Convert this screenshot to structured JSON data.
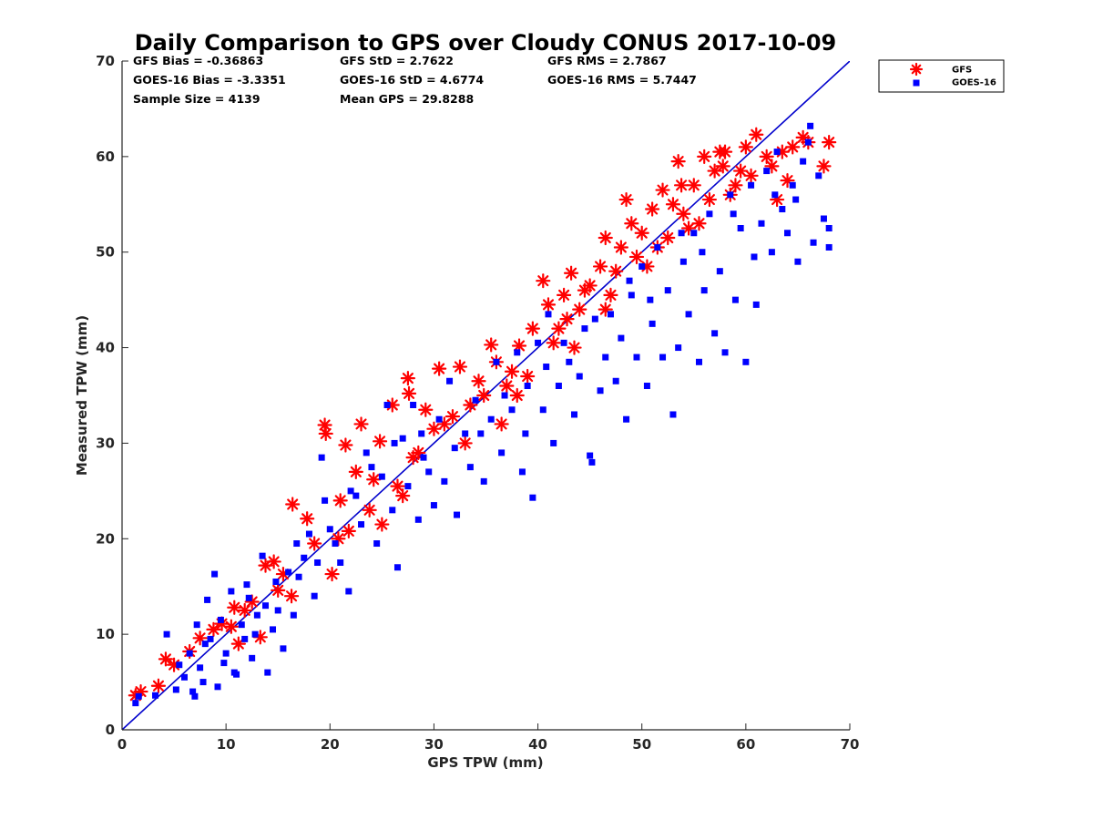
{
  "chart_data": {
    "type": "scatter",
    "title": "Daily Comparison to GPS over Cloudy CONUS 2017-10-09",
    "xlabel": "GPS TPW (mm)",
    "ylabel": "Measured TPW (mm)",
    "xlim": [
      0,
      70
    ],
    "ylim": [
      0,
      70
    ],
    "xticks": [
      "0",
      "10",
      "20",
      "30",
      "40",
      "50",
      "60",
      "70"
    ],
    "yticks": [
      "0",
      "10",
      "20",
      "30",
      "40",
      "50",
      "60",
      "70"
    ],
    "grid": false,
    "legend_position": "outside-top-right",
    "stats": [
      [
        "GFS Bias = -0.36863",
        "GFS StD = 2.7622",
        "GFS RMS = 2.7867"
      ],
      [
        "GOES-16 Bias = -3.3351",
        "GOES-16 StD = 4.6774",
        "GOES-16 RMS = 5.7447"
      ],
      [
        "Sample Size = 4139",
        "Mean GPS = 29.8288",
        ""
      ]
    ],
    "reference_line": {
      "x": [
        0,
        70
      ],
      "y": [
        0,
        70
      ],
      "color": "#0000cc"
    },
    "series": [
      {
        "name": "GFS",
        "marker": "asterisk",
        "color": "#ff0000",
        "points": [
          [
            1.3,
            3.6
          ],
          [
            1.8,
            4.0
          ],
          [
            3.5,
            4.6
          ],
          [
            4.2,
            7.4
          ],
          [
            5.0,
            6.8
          ],
          [
            6.5,
            8.2
          ],
          [
            7.5,
            9.6
          ],
          [
            8.8,
            10.5
          ],
          [
            9.6,
            11.1
          ],
          [
            10.5,
            10.8
          ],
          [
            11.8,
            12.5
          ],
          [
            12.5,
            13.4
          ],
          [
            13.8,
            17.2
          ],
          [
            14.6,
            17.6
          ],
          [
            15.5,
            16.3
          ],
          [
            16.4,
            23.6
          ],
          [
            17.8,
            22.1
          ],
          [
            19.5,
            31.9
          ],
          [
            19.6,
            31.0
          ],
          [
            20.2,
            16.3
          ],
          [
            21.0,
            24.0
          ],
          [
            21.5,
            29.8
          ],
          [
            22.5,
            27.0
          ],
          [
            23.0,
            32.0
          ],
          [
            24.2,
            26.2
          ],
          [
            25.0,
            21.5
          ],
          [
            26.0,
            34.0
          ],
          [
            27.5,
            36.8
          ],
          [
            27.6,
            35.2
          ],
          [
            28.5,
            29.0
          ],
          [
            29.2,
            33.5
          ],
          [
            30.5,
            37.8
          ],
          [
            31.0,
            32.0
          ],
          [
            32.5,
            38.0
          ],
          [
            33.5,
            34.0
          ],
          [
            34.3,
            36.5
          ],
          [
            35.5,
            40.3
          ],
          [
            36.0,
            38.5
          ],
          [
            37.0,
            36.0
          ],
          [
            38.2,
            40.2
          ],
          [
            39.0,
            37.0
          ],
          [
            39.5,
            42.0
          ],
          [
            40.5,
            47.0
          ],
          [
            41.0,
            44.5
          ],
          [
            42.0,
            42.0
          ],
          [
            42.5,
            45.5
          ],
          [
            43.2,
            47.8
          ],
          [
            44.0,
            44.0
          ],
          [
            45.0,
            46.5
          ],
          [
            46.0,
            48.5
          ],
          [
            46.5,
            51.5
          ],
          [
            47.0,
            45.5
          ],
          [
            48.0,
            50.5
          ],
          [
            48.5,
            55.5
          ],
          [
            49.0,
            53.0
          ],
          [
            50.0,
            52.0
          ],
          [
            51.0,
            54.5
          ],
          [
            51.5,
            50.5
          ],
          [
            52.0,
            56.5
          ],
          [
            53.0,
            55.0
          ],
          [
            53.5,
            59.5
          ],
          [
            54.5,
            52.5
          ],
          [
            55.0,
            57.0
          ],
          [
            56.0,
            60.0
          ],
          [
            56.5,
            55.5
          ],
          [
            57.0,
            58.5
          ],
          [
            58.0,
            60.5
          ],
          [
            59.0,
            57.0
          ],
          [
            60.0,
            61.0
          ],
          [
            61.0,
            62.3
          ],
          [
            62.0,
            60.0
          ],
          [
            63.0,
            55.5
          ],
          [
            64.0,
            57.5
          ],
          [
            64.5,
            61.0
          ],
          [
            66.0,
            61.5
          ],
          [
            67.5,
            59.0
          ],
          [
            68.0,
            61.5
          ],
          [
            13.3,
            9.7
          ],
          [
            16.3,
            14.0
          ],
          [
            21.8,
            20.8
          ],
          [
            24.8,
            30.2
          ],
          [
            27.0,
            24.5
          ],
          [
            30.0,
            31.5
          ],
          [
            33.0,
            30.0
          ],
          [
            36.5,
            32.0
          ],
          [
            38.0,
            35.0
          ],
          [
            41.5,
            40.5
          ],
          [
            43.5,
            40.0
          ],
          [
            46.5,
            44.0
          ],
          [
            50.5,
            48.5
          ],
          [
            52.5,
            51.5
          ],
          [
            55.5,
            53.0
          ],
          [
            58.5,
            56.0
          ],
          [
            57.5,
            60.5
          ],
          [
            59.5,
            58.5
          ],
          [
            62.5,
            59.0
          ],
          [
            10.8,
            12.8
          ],
          [
            18.5,
            19.5
          ],
          [
            23.8,
            23.0
          ],
          [
            28.0,
            28.5
          ],
          [
            34.8,
            35.0
          ],
          [
            44.5,
            46.0
          ],
          [
            49.5,
            49.5
          ],
          [
            54.0,
            54.0
          ],
          [
            60.5,
            58.0
          ],
          [
            63.5,
            60.5
          ],
          [
            65.5,
            62.0
          ],
          [
            11.2,
            9.0
          ],
          [
            15.0,
            14.6
          ],
          [
            20.8,
            20.0
          ],
          [
            26.5,
            25.5
          ],
          [
            31.8,
            32.8
          ],
          [
            37.5,
            37.5
          ],
          [
            42.8,
            43.0
          ],
          [
            47.5,
            48.0
          ],
          [
            53.8,
            57.0
          ],
          [
            57.8,
            59.0
          ]
        ]
      },
      {
        "name": "GOES-16",
        "marker": "square",
        "color": "#0000ff",
        "points": [
          [
            1.3,
            2.8
          ],
          [
            1.6,
            3.5
          ],
          [
            3.2,
            3.6
          ],
          [
            4.3,
            10.0
          ],
          [
            5.2,
            4.2
          ],
          [
            6.0,
            5.5
          ],
          [
            6.5,
            8.0
          ],
          [
            7.0,
            3.5
          ],
          [
            7.5,
            6.5
          ],
          [
            8.2,
            13.6
          ],
          [
            8.5,
            9.5
          ],
          [
            8.9,
            16.3
          ],
          [
            9.2,
            4.5
          ],
          [
            9.8,
            7.0
          ],
          [
            10.5,
            14.5
          ],
          [
            11.0,
            5.8
          ],
          [
            11.5,
            11.0
          ],
          [
            12.0,
            15.2
          ],
          [
            12.5,
            7.5
          ],
          [
            13.0,
            12.0
          ],
          [
            13.5,
            18.2
          ],
          [
            14.0,
            6.0
          ],
          [
            14.5,
            10.5
          ],
          [
            15.5,
            8.5
          ],
          [
            16.0,
            16.5
          ],
          [
            16.5,
            12.0
          ],
          [
            17.5,
            18.0
          ],
          [
            18.5,
            14.0
          ],
          [
            19.2,
            28.5
          ],
          [
            19.5,
            24.0
          ],
          [
            20.5,
            19.5
          ],
          [
            21.0,
            17.5
          ],
          [
            21.8,
            14.5
          ],
          [
            22.5,
            24.5
          ],
          [
            23.0,
            21.5
          ],
          [
            24.0,
            27.5
          ],
          [
            24.5,
            19.5
          ],
          [
            25.5,
            34.0
          ],
          [
            26.0,
            23.0
          ],
          [
            26.5,
            17.0
          ],
          [
            27.0,
            30.5
          ],
          [
            27.5,
            25.5
          ],
          [
            28.0,
            34.0
          ],
          [
            28.5,
            22.0
          ],
          [
            29.0,
            28.5
          ],
          [
            30.0,
            23.5
          ],
          [
            30.5,
            32.5
          ],
          [
            31.0,
            26.0
          ],
          [
            31.5,
            36.5
          ],
          [
            32.2,
            22.5
          ],
          [
            33.0,
            31.0
          ],
          [
            33.5,
            27.5
          ],
          [
            34.0,
            34.5
          ],
          [
            34.8,
            26.0
          ],
          [
            35.5,
            32.5
          ],
          [
            36.0,
            38.5
          ],
          [
            36.5,
            29.0
          ],
          [
            37.5,
            33.5
          ],
          [
            38.0,
            39.5
          ],
          [
            38.5,
            27.0
          ],
          [
            39.0,
            36.0
          ],
          [
            39.5,
            24.3
          ],
          [
            40.0,
            40.5
          ],
          [
            40.5,
            33.5
          ],
          [
            41.0,
            43.5
          ],
          [
            41.5,
            30.0
          ],
          [
            42.0,
            36.0
          ],
          [
            42.5,
            40.5
          ],
          [
            43.5,
            33.0
          ],
          [
            44.0,
            37.0
          ],
          [
            44.5,
            42.0
          ],
          [
            45.2,
            28.0
          ],
          [
            45.0,
            28.7
          ],
          [
            46.0,
            35.5
          ],
          [
            46.5,
            39.0
          ],
          [
            47.0,
            43.5
          ],
          [
            47.5,
            36.5
          ],
          [
            48.0,
            41.0
          ],
          [
            48.5,
            32.5
          ],
          [
            49.0,
            45.5
          ],
          [
            49.5,
            39.0
          ],
          [
            50.0,
            48.5
          ],
          [
            50.5,
            36.0
          ],
          [
            51.0,
            42.5
          ],
          [
            51.5,
            50.5
          ],
          [
            52.0,
            39.0
          ],
          [
            52.5,
            46.0
          ],
          [
            53.0,
            33.0
          ],
          [
            53.5,
            40.0
          ],
          [
            54.0,
            49.0
          ],
          [
            54.5,
            43.5
          ],
          [
            55.0,
            52.0
          ],
          [
            55.5,
            38.5
          ],
          [
            56.0,
            46.0
          ],
          [
            56.5,
            54.0
          ],
          [
            57.0,
            41.5
          ],
          [
            57.5,
            48.0
          ],
          [
            58.0,
            39.5
          ],
          [
            58.5,
            56.0
          ],
          [
            59.0,
            45.0
          ],
          [
            59.5,
            52.5
          ],
          [
            60.0,
            38.5
          ],
          [
            60.5,
            57.0
          ],
          [
            61.0,
            44.5
          ],
          [
            61.5,
            53.0
          ],
          [
            62.0,
            58.5
          ],
          [
            62.5,
            50.0
          ],
          [
            63.0,
            60.5
          ],
          [
            63.5,
            54.5
          ],
          [
            64.0,
            52.0
          ],
          [
            64.5,
            57.0
          ],
          [
            65.0,
            49.0
          ],
          [
            65.5,
            59.5
          ],
          [
            66.0,
            61.5
          ],
          [
            66.5,
            51.0
          ],
          [
            67.0,
            58.0
          ],
          [
            67.5,
            53.5
          ],
          [
            68.0,
            52.5
          ],
          [
            68.0,
            50.5
          ],
          [
            66.2,
            63.2
          ],
          [
            6.8,
            4.0
          ],
          [
            7.8,
            5.0
          ],
          [
            8.0,
            9.0
          ],
          [
            9.5,
            11.5
          ],
          [
            10.0,
            8.0
          ],
          [
            11.8,
            9.5
          ],
          [
            12.8,
            10.0
          ],
          [
            13.8,
            13.0
          ],
          [
            15.0,
            12.5
          ],
          [
            17.0,
            16.0
          ],
          [
            18.0,
            20.5
          ],
          [
            20.0,
            21.0
          ],
          [
            22.0,
            25.0
          ],
          [
            23.5,
            29.0
          ],
          [
            25.0,
            26.5
          ],
          [
            26.2,
            30.0
          ],
          [
            28.8,
            31.0
          ],
          [
            29.5,
            27.0
          ],
          [
            32.0,
            29.5
          ],
          [
            34.5,
            31.0
          ],
          [
            36.8,
            35.0
          ],
          [
            38.8,
            31.0
          ],
          [
            40.8,
            38.0
          ],
          [
            43.0,
            38.5
          ],
          [
            45.5,
            43.0
          ],
          [
            48.8,
            47.0
          ],
          [
            50.8,
            45.0
          ],
          [
            53.8,
            52.0
          ],
          [
            55.8,
            50.0
          ],
          [
            58.8,
            54.0
          ],
          [
            60.8,
            49.5
          ],
          [
            62.8,
            56.0
          ],
          [
            64.8,
            55.5
          ],
          [
            5.5,
            6.8
          ],
          [
            7.2,
            11.0
          ],
          [
            10.8,
            6.0
          ],
          [
            12.2,
            13.8
          ],
          [
            14.8,
            15.5
          ],
          [
            16.8,
            19.5
          ],
          [
            18.8,
            17.5
          ]
        ]
      }
    ]
  }
}
